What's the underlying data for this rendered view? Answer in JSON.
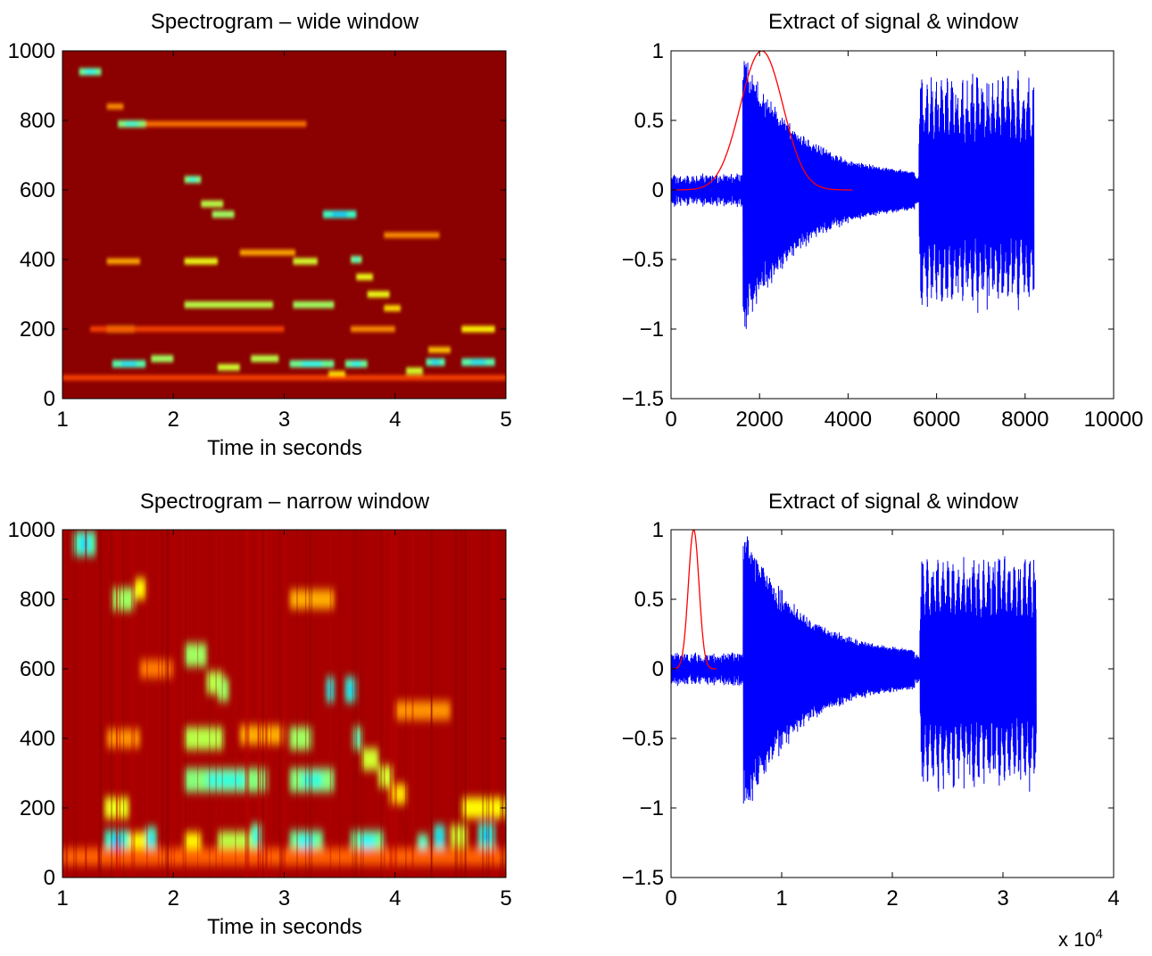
{
  "chart_data": [
    {
      "type": "heatmap",
      "title": "Spectrogram – wide window",
      "xlabel": "Time in seconds",
      "ylabel": "",
      "xlim": [
        1,
        5
      ],
      "ylim": [
        0,
        1000
      ],
      "xticks": [
        "1",
        "2",
        "3",
        "4",
        "5"
      ],
      "yticks": [
        "0",
        "200",
        "400",
        "600",
        "800",
        "1000"
      ],
      "colormap": "jet",
      "background_color": "#8b0000",
      "features": [
        {
          "t0": 1.15,
          "t1": 1.35,
          "f": 940,
          "level": 0.9
        },
        {
          "t0": 1.5,
          "t1": 1.75,
          "f": 790,
          "level": 0.85
        },
        {
          "t0": 1.75,
          "t1": 3.2,
          "f": 790,
          "level": 0.35
        },
        {
          "t0": 1.4,
          "t1": 1.55,
          "f": 840,
          "level": 0.4
        },
        {
          "t0": 1.45,
          "t1": 1.75,
          "f": 100,
          "level": 0.95
        },
        {
          "t0": 1.8,
          "t1": 2.0,
          "f": 115,
          "level": 0.8
        },
        {
          "t0": 1.4,
          "t1": 1.65,
          "f": 200,
          "level": 0.6
        },
        {
          "t0": 1.25,
          "t1": 3.0,
          "f": 200,
          "level": 0.25
        },
        {
          "t0": 1.4,
          "t1": 1.7,
          "f": 395,
          "level": 0.45
        },
        {
          "t0": 2.1,
          "t1": 2.25,
          "f": 630,
          "level": 0.85
        },
        {
          "t0": 2.25,
          "t1": 2.45,
          "f": 560,
          "level": 0.75
        },
        {
          "t0": 2.35,
          "t1": 2.55,
          "f": 530,
          "level": 0.8
        },
        {
          "t0": 2.1,
          "t1": 2.4,
          "f": 395,
          "level": 0.65
        },
        {
          "t0": 2.1,
          "t1": 2.9,
          "f": 270,
          "level": 0.75
        },
        {
          "t0": 2.4,
          "t1": 2.6,
          "f": 90,
          "level": 0.7
        },
        {
          "t0": 2.7,
          "t1": 2.95,
          "f": 115,
          "level": 0.75
        },
        {
          "t0": 2.6,
          "t1": 3.1,
          "f": 420,
          "level": 0.45
        },
        {
          "t0": 3.08,
          "t1": 3.45,
          "f": 270,
          "level": 0.8
        },
        {
          "t0": 3.08,
          "t1": 3.3,
          "f": 395,
          "level": 0.7
        },
        {
          "t0": 3.35,
          "t1": 3.65,
          "f": 530,
          "level": 1.0
        },
        {
          "t0": 3.05,
          "t1": 3.45,
          "f": 100,
          "level": 0.9
        },
        {
          "t0": 3.4,
          "t1": 3.55,
          "f": 70,
          "level": 0.6
        },
        {
          "t0": 3.55,
          "t1": 3.75,
          "f": 100,
          "level": 0.9
        },
        {
          "t0": 3.6,
          "t1": 3.7,
          "f": 400,
          "level": 0.85
        },
        {
          "t0": 3.65,
          "t1": 3.8,
          "f": 350,
          "level": 0.65
        },
        {
          "t0": 3.75,
          "t1": 3.95,
          "f": 300,
          "level": 0.65
        },
        {
          "t0": 3.9,
          "t1": 4.05,
          "f": 260,
          "level": 0.55
        },
        {
          "t0": 3.6,
          "t1": 4.0,
          "f": 200,
          "level": 0.4
        },
        {
          "t0": 4.1,
          "t1": 4.25,
          "f": 80,
          "level": 0.7
        },
        {
          "t0": 4.28,
          "t1": 4.45,
          "f": 105,
          "level": 0.95
        },
        {
          "t0": 4.6,
          "t1": 4.9,
          "f": 200,
          "level": 0.6
        },
        {
          "t0": 4.6,
          "t1": 4.9,
          "f": 105,
          "level": 0.95
        },
        {
          "t0": 3.9,
          "t1": 4.4,
          "f": 470,
          "level": 0.4
        },
        {
          "t0": 4.3,
          "t1": 4.5,
          "f": 140,
          "level": 0.5
        },
        {
          "t0": 1.0,
          "t1": 5.0,
          "f": 60,
          "level": 0.25
        }
      ]
    },
    {
      "type": "line",
      "title": "Extract of signal & window",
      "xlabel": "",
      "ylabel": "",
      "xlim": [
        0,
        10000
      ],
      "ylim": [
        -1.5,
        1
      ],
      "xticks": [
        "0",
        "2000",
        "4000",
        "6000",
        "8000",
        "10000"
      ],
      "yticks": [
        "−1.5",
        "−1",
        "−0.5",
        "0",
        "0.5",
        "1"
      ],
      "series": [
        {
          "color": "#0000ff",
          "signal": {
            "n_samples": 8200,
            "onset": 1620,
            "onset_peak": 1.0,
            "onset_trough": -1.0,
            "decay_to": 0.1,
            "decay_end": 5500,
            "burst_start": 5600,
            "burst_peak": 0.9,
            "burst_end": 8200,
            "pre_noise": 0.08
          }
        },
        {
          "color": "#ff0000",
          "window": {
            "center": 2048,
            "width": 4096,
            "peak": 1.0,
            "shape": "gaussian"
          }
        }
      ]
    },
    {
      "type": "heatmap",
      "title": "Spectrogram – narrow window",
      "xlabel": "Time in seconds",
      "ylabel": "",
      "xlim": [
        1,
        5
      ],
      "ylim": [
        0,
        1000
      ],
      "xticks": [
        "1",
        "2",
        "3",
        "4",
        "5"
      ],
      "yticks": [
        "0",
        "200",
        "400",
        "600",
        "800",
        "1000"
      ],
      "colormap": "jet",
      "background_color": "#a80000",
      "features": [
        {
          "t0": 1.1,
          "t1": 1.3,
          "f": 960,
          "level": 0.95
        },
        {
          "t0": 1.45,
          "t1": 1.65,
          "f": 800,
          "level": 0.8
        },
        {
          "t0": 1.65,
          "t1": 1.75,
          "f": 830,
          "level": 0.6
        },
        {
          "t0": 1.38,
          "t1": 1.6,
          "f": 100,
          "level": 1.0
        },
        {
          "t0": 1.6,
          "t1": 1.75,
          "f": 100,
          "level": 0.6
        },
        {
          "t0": 1.75,
          "t1": 1.85,
          "f": 110,
          "level": 0.95
        },
        {
          "t0": 1.38,
          "t1": 1.6,
          "f": 200,
          "level": 0.65
        },
        {
          "t0": 1.4,
          "t1": 1.7,
          "f": 400,
          "level": 0.4
        },
        {
          "t0": 2.1,
          "t1": 2.3,
          "f": 640,
          "level": 0.8
        },
        {
          "t0": 2.3,
          "t1": 2.45,
          "f": 560,
          "level": 0.75
        },
        {
          "t0": 2.4,
          "t1": 2.5,
          "f": 540,
          "level": 0.8
        },
        {
          "t0": 2.1,
          "t1": 2.45,
          "f": 400,
          "level": 0.75
        },
        {
          "t0": 2.1,
          "t1": 2.85,
          "f": 280,
          "level": 0.85
        },
        {
          "t0": 2.1,
          "t1": 2.25,
          "f": 100,
          "level": 0.6
        },
        {
          "t0": 2.4,
          "t1": 2.75,
          "f": 100,
          "level": 0.75
        },
        {
          "t0": 2.7,
          "t1": 2.8,
          "f": 120,
          "level": 0.9
        },
        {
          "t0": 2.6,
          "t1": 3.0,
          "f": 410,
          "level": 0.45
        },
        {
          "t0": 3.05,
          "t1": 3.45,
          "f": 280,
          "level": 0.85
        },
        {
          "t0": 3.05,
          "t1": 3.25,
          "f": 400,
          "level": 0.8
        },
        {
          "t0": 3.05,
          "t1": 3.45,
          "f": 800,
          "level": 0.45
        },
        {
          "t0": 3.38,
          "t1": 3.45,
          "f": 540,
          "level": 1.0
        },
        {
          "t0": 3.55,
          "t1": 3.65,
          "f": 540,
          "level": 1.0
        },
        {
          "t0": 3.05,
          "t1": 3.35,
          "f": 100,
          "level": 0.9
        },
        {
          "t0": 3.6,
          "t1": 3.9,
          "f": 100,
          "level": 0.9
        },
        {
          "t0": 3.62,
          "t1": 3.7,
          "f": 400,
          "level": 0.85
        },
        {
          "t0": 3.7,
          "t1": 3.85,
          "f": 340,
          "level": 0.7
        },
        {
          "t0": 3.85,
          "t1": 3.98,
          "f": 290,
          "level": 0.7
        },
        {
          "t0": 3.95,
          "t1": 4.1,
          "f": 240,
          "level": 0.55
        },
        {
          "t0": 4.2,
          "t1": 4.3,
          "f": 90,
          "level": 0.9
        },
        {
          "t0": 4.35,
          "t1": 4.45,
          "f": 115,
          "level": 1.0
        },
        {
          "t0": 4.5,
          "t1": 4.65,
          "f": 120,
          "level": 0.7
        },
        {
          "t0": 4.75,
          "t1": 4.9,
          "f": 120,
          "level": 1.0
        },
        {
          "t0": 4.6,
          "t1": 5.0,
          "f": 200,
          "level": 0.6
        },
        {
          "t0": 4.0,
          "t1": 4.5,
          "f": 480,
          "level": 0.4
        },
        {
          "t0": 1.7,
          "t1": 2.0,
          "f": 600,
          "level": 0.35
        },
        {
          "t0": 1.0,
          "t1": 5.0,
          "f": 60,
          "level": 0.3
        }
      ]
    },
    {
      "type": "line",
      "title": "Extract of signal & window",
      "xlabel": "",
      "ylabel": "",
      "xlim": [
        0,
        40000
      ],
      "ylim": [
        -1.5,
        1
      ],
      "xticks": [
        "0",
        "1",
        "2",
        "3",
        "4"
      ],
      "yticks": [
        "−1.5",
        "−1",
        "−0.5",
        "0",
        "0.5",
        "1"
      ],
      "x_multiplier_base": "x 10",
      "x_multiplier_exponent": "4",
      "series": [
        {
          "color": "#0000ff",
          "signal": {
            "n_samples": 33000,
            "onset": 6500,
            "onset_peak": 1.0,
            "onset_trough": -1.05,
            "decay_to": 0.1,
            "decay_end": 22000,
            "burst_start": 22500,
            "burst_peak": 0.9,
            "burst_end": 33000,
            "pre_noise": 0.08
          }
        },
        {
          "color": "#ff0000",
          "window": {
            "center": 2048,
            "width": 4096,
            "peak": 1.0,
            "shape": "gaussian"
          }
        }
      ]
    }
  ]
}
